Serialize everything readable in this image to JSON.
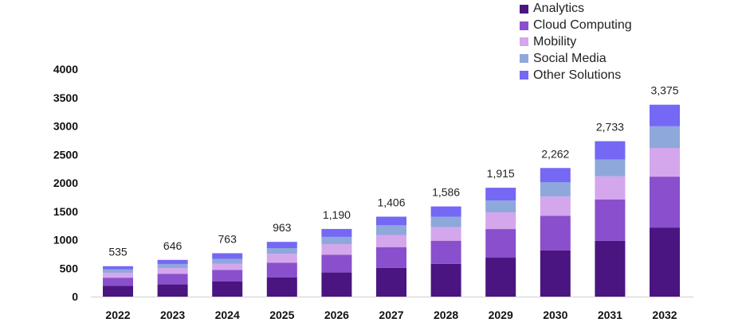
{
  "chart_data": {
    "type": "bar",
    "stacked": true,
    "title": "",
    "xlabel": "",
    "ylabel": "",
    "ylim": [
      0,
      4000
    ],
    "yticks": [
      "0",
      "500",
      "1000",
      "1500",
      "2000",
      "2500",
      "3000",
      "3500",
      "4000"
    ],
    "ytick_values": [
      0,
      500,
      1000,
      1500,
      2000,
      2500,
      3000,
      3500,
      4000
    ],
    "grid": false,
    "legend_position": "top-right",
    "categories": [
      "2022",
      "2023",
      "2024",
      "2025",
      "2026",
      "2027",
      "2028",
      "2029",
      "2030",
      "2031",
      "2032"
    ],
    "totals": [
      535,
      646,
      763,
      963,
      1190,
      1406,
      1586,
      1915,
      2262,
      2733,
      3375
    ],
    "total_labels": [
      "535",
      "646",
      "763",
      "963",
      "1,190",
      "1,406",
      "1,586",
      "1,915",
      "2,262",
      "2,733",
      "3,375"
    ],
    "series": [
      {
        "name": "Analytics",
        "color": "#4a1580",
        "values": [
          188,
          215,
          270,
          340,
          425,
          505,
          575,
          685,
          815,
          980,
          1215
        ]
      },
      {
        "name": "Cloud Computing",
        "color": "#8a4fcc",
        "values": [
          145,
          187,
          198,
          255,
          312,
          366,
          408,
          503,
          605,
          730,
          895
        ]
      },
      {
        "name": "Mobility",
        "color": "#d4a6ec",
        "values": [
          87,
          100,
          112,
          158,
          185,
          213,
          240,
          294,
          340,
          405,
          505
        ]
      },
      {
        "name": "Social Media",
        "color": "#8fa8dc",
        "values": [
          58,
          72,
          85,
          100,
          128,
          170,
          182,
          210,
          250,
          295,
          380
        ]
      },
      {
        "name": "Other Solutions",
        "color": "#7468f4",
        "values": [
          57,
          72,
          98,
          110,
          140,
          152,
          181,
          223,
          252,
          323,
          380
        ]
      }
    ]
  }
}
